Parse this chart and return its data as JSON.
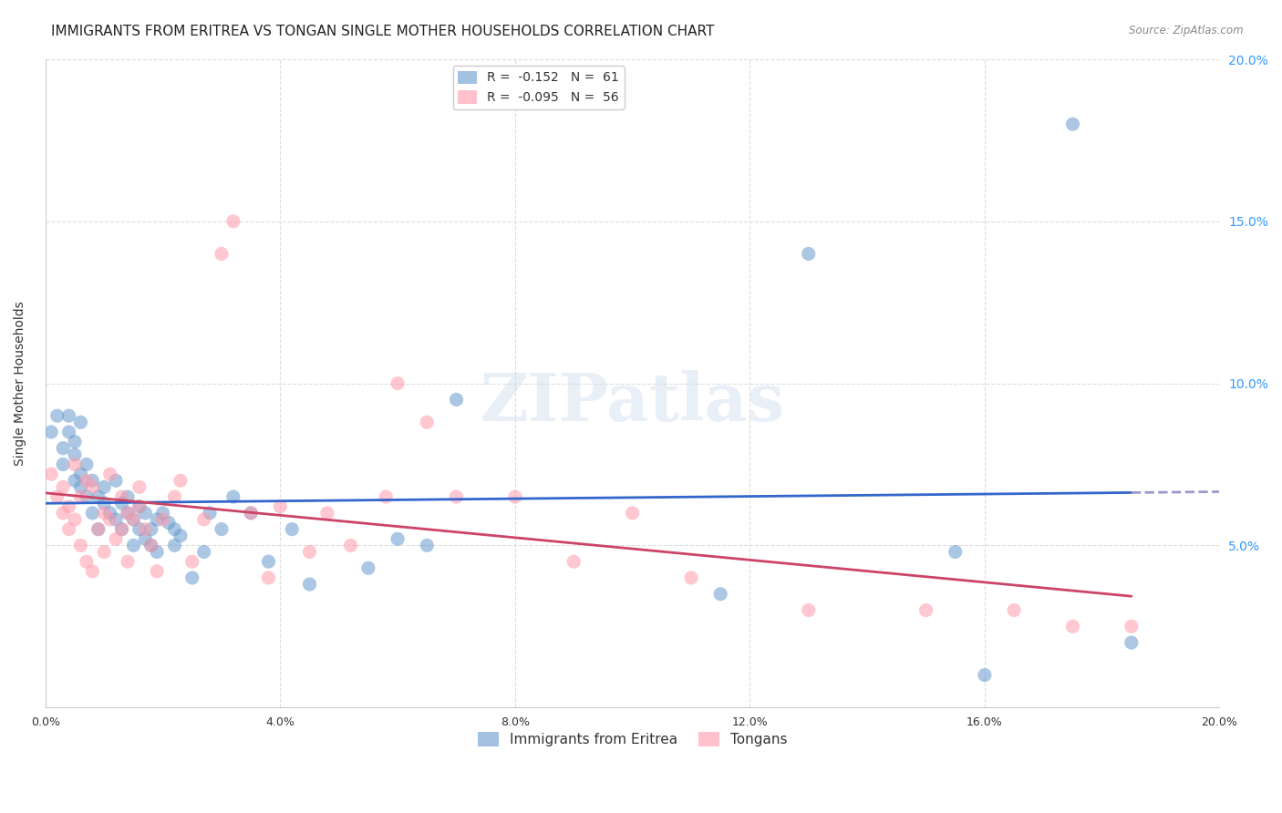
{
  "title": "IMMIGRANTS FROM ERITREA VS TONGAN SINGLE MOTHER HOUSEHOLDS CORRELATION CHART",
  "source": "Source: ZipAtlas.com",
  "ylabel": "Single Mother Households",
  "xlabel": "",
  "xlim": [
    0.0,
    0.2
  ],
  "ylim": [
    0.0,
    0.2
  ],
  "xticks": [
    0.0,
    0.04,
    0.08,
    0.12,
    0.16,
    0.2
  ],
  "yticks": [
    0.0,
    0.05,
    0.1,
    0.15,
    0.2
  ],
  "ytick_labels": [
    "",
    "5.0%",
    "10.0%",
    "15.0%",
    "20.0%"
  ],
  "xtick_labels": [
    "0.0%",
    "4.0%",
    "8.0%",
    "12.0%",
    "16.0%",
    "20.0%"
  ],
  "series1_name": "Immigrants from Eritrea",
  "series1_R": -0.152,
  "series1_N": 61,
  "series1_color": "#6699cc",
  "series2_name": "Tongans",
  "series2_R": -0.095,
  "series2_N": 56,
  "series2_color": "#ff99aa",
  "background_color": "#ffffff",
  "grid_color": "#dddddd",
  "title_fontsize": 11,
  "axis_fontsize": 9,
  "legend_fontsize": 10,
  "watermark": "ZIPatlas",
  "series1_x": [
    0.001,
    0.002,
    0.003,
    0.003,
    0.004,
    0.004,
    0.005,
    0.005,
    0.005,
    0.006,
    0.006,
    0.006,
    0.007,
    0.007,
    0.008,
    0.008,
    0.009,
    0.009,
    0.01,
    0.01,
    0.011,
    0.012,
    0.012,
    0.013,
    0.013,
    0.014,
    0.014,
    0.015,
    0.015,
    0.016,
    0.016,
    0.017,
    0.017,
    0.018,
    0.018,
    0.019,
    0.019,
    0.02,
    0.021,
    0.022,
    0.022,
    0.023,
    0.025,
    0.027,
    0.028,
    0.03,
    0.032,
    0.035,
    0.038,
    0.042,
    0.045,
    0.055,
    0.06,
    0.065,
    0.07,
    0.115,
    0.13,
    0.155,
    0.16,
    0.175,
    0.185
  ],
  "series1_y": [
    0.085,
    0.09,
    0.075,
    0.08,
    0.085,
    0.09,
    0.082,
    0.078,
    0.07,
    0.088,
    0.072,
    0.068,
    0.065,
    0.075,
    0.06,
    0.07,
    0.065,
    0.055,
    0.063,
    0.068,
    0.06,
    0.058,
    0.07,
    0.063,
    0.055,
    0.06,
    0.065,
    0.058,
    0.05,
    0.055,
    0.062,
    0.052,
    0.06,
    0.055,
    0.05,
    0.048,
    0.058,
    0.06,
    0.057,
    0.055,
    0.05,
    0.053,
    0.04,
    0.048,
    0.06,
    0.055,
    0.065,
    0.06,
    0.045,
    0.055,
    0.038,
    0.043,
    0.052,
    0.05,
    0.095,
    0.035,
    0.14,
    0.048,
    0.01,
    0.18,
    0.02
  ],
  "series2_x": [
    0.001,
    0.002,
    0.003,
    0.003,
    0.004,
    0.004,
    0.005,
    0.005,
    0.006,
    0.006,
    0.007,
    0.007,
    0.008,
    0.008,
    0.009,
    0.01,
    0.01,
    0.011,
    0.011,
    0.012,
    0.013,
    0.013,
    0.014,
    0.014,
    0.015,
    0.016,
    0.016,
    0.017,
    0.018,
    0.019,
    0.02,
    0.022,
    0.023,
    0.025,
    0.027,
    0.03,
    0.032,
    0.035,
    0.038,
    0.04,
    0.045,
    0.048,
    0.052,
    0.058,
    0.06,
    0.065,
    0.07,
    0.08,
    0.09,
    0.1,
    0.11,
    0.13,
    0.15,
    0.165,
    0.175,
    0.185
  ],
  "series2_y": [
    0.072,
    0.065,
    0.06,
    0.068,
    0.055,
    0.062,
    0.058,
    0.075,
    0.05,
    0.065,
    0.045,
    0.07,
    0.042,
    0.068,
    0.055,
    0.048,
    0.06,
    0.058,
    0.072,
    0.052,
    0.055,
    0.065,
    0.06,
    0.045,
    0.058,
    0.062,
    0.068,
    0.055,
    0.05,
    0.042,
    0.058,
    0.065,
    0.07,
    0.045,
    0.058,
    0.14,
    0.15,
    0.06,
    0.04,
    0.062,
    0.048,
    0.06,
    0.05,
    0.065,
    0.1,
    0.088,
    0.065,
    0.065,
    0.045,
    0.06,
    0.04,
    0.03,
    0.03,
    0.03,
    0.025,
    0.025
  ]
}
